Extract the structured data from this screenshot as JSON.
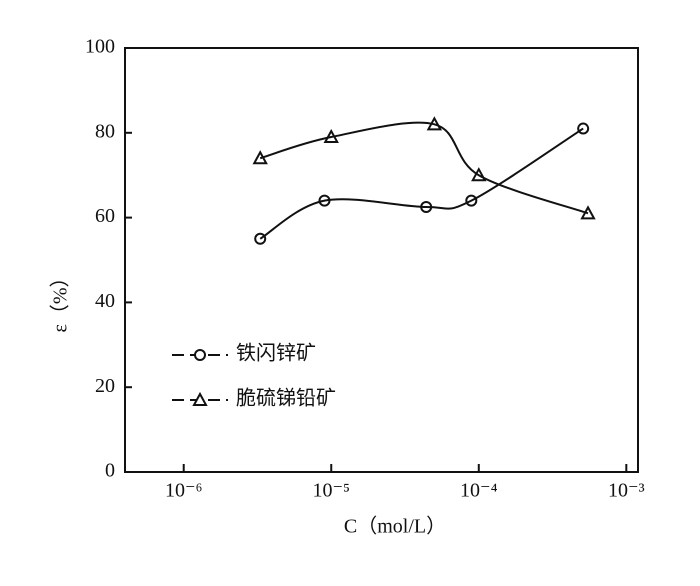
{
  "chart_data": {
    "type": "scatter",
    "xlabel": "C（mol/L）",
    "ylabel": "ε（%）",
    "xscale": "log",
    "xlim": [
      4e-07,
      0.0012
    ],
    "ylim": [
      0,
      100
    ],
    "xticks": [
      {
        "value": 1e-06,
        "label": "10⁻⁶"
      },
      {
        "value": 1e-05,
        "label": "10⁻⁵"
      },
      {
        "value": 0.0001,
        "label": "10⁻⁴"
      },
      {
        "value": 0.001,
        "label": "10⁻³"
      }
    ],
    "yticks": [
      0,
      20,
      40,
      60,
      80,
      100
    ],
    "legend": "lower left",
    "series": [
      {
        "name": "铁闪锌矿",
        "marker": "circle",
        "color": "#111111",
        "x": [
          3.3e-06,
          9e-06,
          4.4e-05,
          8.9e-05,
          0.00051
        ],
        "values": [
          55,
          64,
          62.5,
          64,
          81
        ]
      },
      {
        "name": "脆硫锑铅矿",
        "marker": "triangle",
        "color": "#111111",
        "x": [
          3.3e-06,
          1e-05,
          5e-05,
          0.0001,
          0.00055
        ],
        "values": [
          74,
          79,
          82,
          70,
          61
        ]
      }
    ]
  }
}
